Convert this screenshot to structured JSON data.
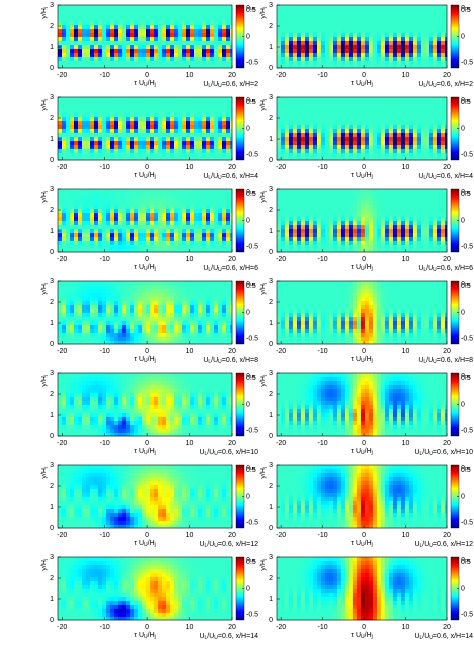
{
  "chart_data": [
    {
      "type": "heatmap",
      "xlim": [
        -21,
        20
      ],
      "ylim": [
        0,
        3
      ],
      "xticks": [
        -20,
        -10,
        0,
        10,
        20
      ],
      "yticks": [
        0,
        1,
        2,
        3
      ],
      "xlabel": [
        "τ U",
        "U",
        "/H",
        "j"
      ],
      "ylabel": [
        "y/H",
        "j"
      ],
      "colorbar": {
        "label": [
          "ρ",
          "uv"
        ],
        "lim": [
          -0.6,
          0.6
        ],
        "ticks": [
          -0.5,
          0,
          0.5
        ]
      },
      "annotation": [
        "U",
        "L",
        "/U",
        "U",
        "=0.6, x/H=2"
      ]
    },
    {
      "type": "heatmap",
      "xlim": [
        -21,
        20
      ],
      "ylim": [
        0,
        3
      ],
      "xticks": [
        -20,
        -10,
        0,
        10,
        20
      ],
      "yticks": [
        0,
        1,
        2,
        3
      ],
      "xlabel": [
        "τ U",
        "U",
        "/H",
        "j"
      ],
      "ylabel": [
        "y/H",
        "j"
      ],
      "colorbar": {
        "label": [
          "ρ",
          "pv"
        ],
        "lim": [
          -0.6,
          0.6
        ],
        "ticks": [
          -0.5,
          0,
          0.5
        ]
      },
      "annotation": [
        "U",
        "L",
        "/U",
        "U",
        "=0.6, x/H=2"
      ]
    },
    {
      "type": "heatmap",
      "xlim": [
        -21,
        20
      ],
      "ylim": [
        0,
        3
      ],
      "xticks": [
        -20,
        -10,
        0,
        10,
        20
      ],
      "yticks": [
        0,
        1,
        2,
        3
      ],
      "xlabel": [
        "τ U",
        "U",
        "/H",
        "j"
      ],
      "ylabel": [
        "y/H",
        "j"
      ],
      "colorbar": {
        "label": [
          "ρ",
          "uv"
        ],
        "lim": [
          -0.6,
          0.6
        ],
        "ticks": [
          -0.5,
          0,
          0.5
        ]
      },
      "annotation": [
        "U",
        "L",
        "/U",
        "U",
        "=0.6, x/H=4"
      ]
    },
    {
      "type": "heatmap",
      "xlim": [
        -21,
        20
      ],
      "ylim": [
        0,
        3
      ],
      "xticks": [
        -20,
        -10,
        0,
        10,
        20
      ],
      "yticks": [
        0,
        1,
        2,
        3
      ],
      "xlabel": [
        "τ U",
        "U",
        "/H",
        "j"
      ],
      "ylabel": [
        "y/H",
        "j"
      ],
      "colorbar": {
        "label": [
          "ρ",
          "pv"
        ],
        "lim": [
          -0.6,
          0.6
        ],
        "ticks": [
          -0.5,
          0,
          0.5
        ]
      },
      "annotation": [
        "U",
        "L",
        "/U",
        "U",
        "=0.6, x/H=4"
      ]
    },
    {
      "type": "heatmap",
      "xlim": [
        -21,
        20
      ],
      "ylim": [
        0,
        3
      ],
      "xticks": [
        -20,
        -10,
        0,
        10,
        20
      ],
      "yticks": [
        0,
        1,
        2,
        3
      ],
      "xlabel": [
        "τ U",
        "U",
        "/H",
        "j"
      ],
      "ylabel": [
        "y/H",
        "j"
      ],
      "colorbar": {
        "label": [
          "ρ",
          "uv"
        ],
        "lim": [
          -0.6,
          0.6
        ],
        "ticks": [
          -0.5,
          0,
          0.5
        ]
      },
      "annotation": [
        "U",
        "L",
        "/U",
        "U",
        "=0.6, x/H=6"
      ]
    },
    {
      "type": "heatmap",
      "xlim": [
        -21,
        20
      ],
      "ylim": [
        0,
        3
      ],
      "xticks": [
        -20,
        -10,
        0,
        10,
        20
      ],
      "yticks": [
        0,
        1,
        2,
        3
      ],
      "xlabel": [
        "τ U",
        "U",
        "/H",
        "j"
      ],
      "ylabel": [
        "y/H",
        "j"
      ],
      "colorbar": {
        "label": [
          "ρ",
          "pv"
        ],
        "lim": [
          -0.6,
          0.6
        ],
        "ticks": [
          -0.5,
          0,
          0.5
        ]
      },
      "annotation": [
        "U",
        "L",
        "/U",
        "U",
        "=0.6, x/H=6"
      ]
    },
    {
      "type": "heatmap",
      "xlim": [
        -21,
        20
      ],
      "ylim": [
        0,
        3
      ],
      "xticks": [
        -20,
        -10,
        0,
        10,
        20
      ],
      "yticks": [
        0,
        1,
        2,
        3
      ],
      "xlabel": [
        "τ U",
        "U",
        "/H",
        "j"
      ],
      "ylabel": [
        "y/H",
        "j"
      ],
      "colorbar": {
        "label": [
          "ρ",
          "uv"
        ],
        "lim": [
          -0.6,
          0.6
        ],
        "ticks": [
          -0.5,
          0,
          0.5
        ]
      },
      "annotation": [
        "U",
        "L",
        "/U",
        "U",
        "=0.6, x/H=8"
      ]
    },
    {
      "type": "heatmap",
      "xlim": [
        -21,
        20
      ],
      "ylim": [
        0,
        3
      ],
      "xticks": [
        -20,
        -10,
        0,
        10,
        20
      ],
      "yticks": [
        0,
        1,
        2,
        3
      ],
      "xlabel": [
        "τ U",
        "U",
        "/H",
        "j"
      ],
      "ylabel": [
        "y/H",
        "j"
      ],
      "colorbar": {
        "label": [
          "ρ",
          "pv"
        ],
        "lim": [
          -0.6,
          0.6
        ],
        "ticks": [
          -0.5,
          0,
          0.5
        ]
      },
      "annotation": [
        "U",
        "L",
        "/U",
        "U",
        "=0.6, x/H=8"
      ]
    },
    {
      "type": "heatmap",
      "xlim": [
        -21,
        20
      ],
      "ylim": [
        0,
        3
      ],
      "xticks": [
        -20,
        -10,
        0,
        10,
        20
      ],
      "yticks": [
        0,
        1,
        2,
        3
      ],
      "xlabel": [
        "τ U",
        "U",
        "/H",
        "j"
      ],
      "ylabel": [
        "y/H",
        "j"
      ],
      "colorbar": {
        "label": [
          "ρ",
          "uv"
        ],
        "lim": [
          -0.6,
          0.6
        ],
        "ticks": [
          -0.5,
          0,
          0.5
        ]
      },
      "annotation": [
        "U",
        "L",
        "/U",
        "U",
        "=0.6, x/H=10"
      ]
    },
    {
      "type": "heatmap",
      "xlim": [
        -21,
        20
      ],
      "ylim": [
        0,
        3
      ],
      "xticks": [
        -20,
        -10,
        0,
        10,
        20
      ],
      "yticks": [
        0,
        1,
        2,
        3
      ],
      "xlabel": [
        "τ U",
        "U",
        "/H",
        "j"
      ],
      "ylabel": [
        "y/H",
        "j"
      ],
      "colorbar": {
        "label": [
          "ρ",
          "pv"
        ],
        "lim": [
          -0.6,
          0.6
        ],
        "ticks": [
          -0.5,
          0,
          0.5
        ]
      },
      "annotation": [
        "U",
        "L",
        "/U",
        "U",
        "=0.6, x/H=10"
      ]
    },
    {
      "type": "heatmap",
      "xlim": [
        -21,
        20
      ],
      "ylim": [
        0,
        3
      ],
      "xticks": [
        -20,
        -10,
        0,
        10,
        20
      ],
      "yticks": [
        0,
        1,
        2,
        3
      ],
      "xlabel": [
        "τ U",
        "U",
        "/H",
        "j"
      ],
      "ylabel": [
        "y/H",
        "j"
      ],
      "colorbar": {
        "label": [
          "ρ",
          "uv"
        ],
        "lim": [
          -0.6,
          0.6
        ],
        "ticks": [
          -0.5,
          0,
          0.5
        ]
      },
      "annotation": [
        "U",
        "L",
        "/U",
        "U",
        "=0.6, x/H=12"
      ]
    },
    {
      "type": "heatmap",
      "xlim": [
        -21,
        20
      ],
      "ylim": [
        0,
        3
      ],
      "xticks": [
        -20,
        -10,
        0,
        10,
        20
      ],
      "yticks": [
        0,
        1,
        2,
        3
      ],
      "xlabel": [
        "τ U",
        "U",
        "/H",
        "j"
      ],
      "ylabel": [
        "y/H",
        "j"
      ],
      "colorbar": {
        "label": [
          "ρ",
          "pv"
        ],
        "lim": [
          -0.6,
          0.6
        ],
        "ticks": [
          -0.5,
          0,
          0.5
        ]
      },
      "annotation": [
        "U",
        "L",
        "/U",
        "U",
        "=0.6, x/H=12"
      ]
    },
    {
      "type": "heatmap",
      "xlim": [
        -21,
        20
      ],
      "ylim": [
        0,
        3
      ],
      "xticks": [
        -20,
        -10,
        0,
        10,
        20
      ],
      "yticks": [
        0,
        1,
        2,
        3
      ],
      "xlabel": [
        "τ U",
        "U",
        "/H",
        "j"
      ],
      "ylabel": [
        "y/H",
        "j"
      ],
      "colorbar": {
        "label": [
          "ρ",
          "uv"
        ],
        "lim": [
          -0.6,
          0.6
        ],
        "ticks": [
          -0.5,
          0,
          0.5
        ]
      },
      "annotation": [
        "U",
        "L",
        "/U",
        "U",
        "=0.6, x/H=14"
      ]
    },
    {
      "type": "heatmap",
      "xlim": [
        -21,
        20
      ],
      "ylim": [
        0,
        3
      ],
      "xticks": [
        -20,
        -10,
        0,
        10,
        20
      ],
      "yticks": [
        0,
        1,
        2,
        3
      ],
      "xlabel": [
        "τ U",
        "U",
        "/H",
        "j"
      ],
      "ylabel": [
        "y/H",
        "j"
      ],
      "colorbar": {
        "label": [
          "ρ",
          "pv"
        ],
        "lim": [
          -0.6,
          0.6
        ],
        "ticks": [
          -0.5,
          0,
          0.5
        ]
      },
      "annotation": [
        "U",
        "L",
        "/U",
        "U",
        "=0.6, x/H=14"
      ]
    }
  ]
}
